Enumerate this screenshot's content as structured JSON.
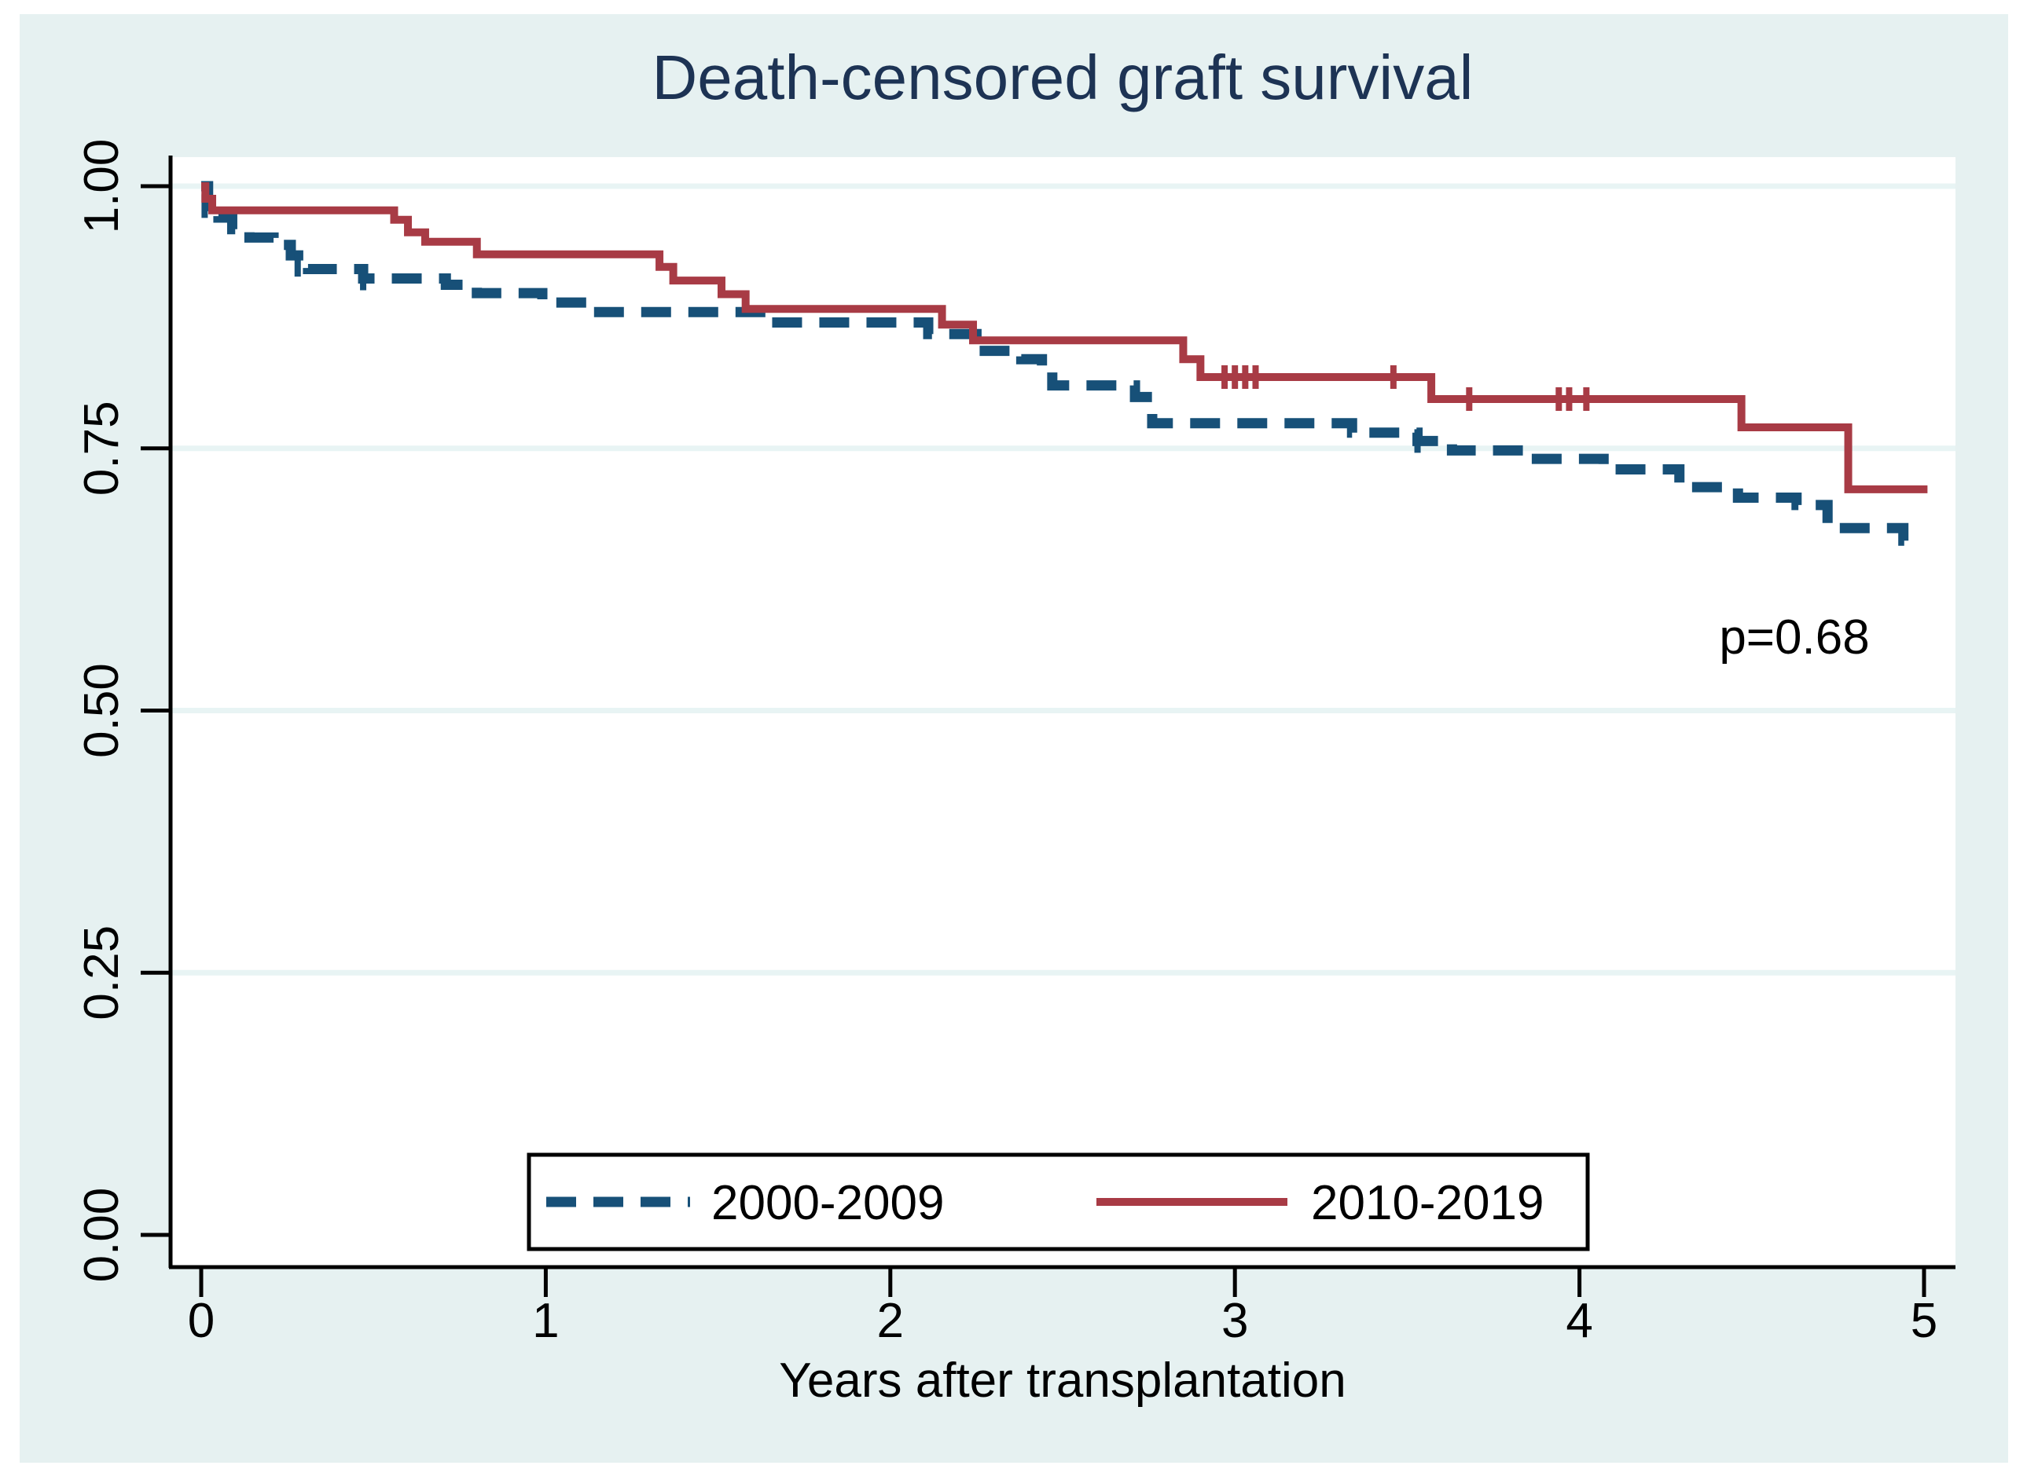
{
  "title": {
    "text": "Death-censored graft survival",
    "color": "#1d3354"
  },
  "annotation": {
    "p_value": "p=0.68"
  },
  "colors": {
    "figure_background": "#e6f1f1",
    "plot_background": "#ffffff",
    "gridline": "#e8f4f4",
    "axis": "#000000",
    "series_2000": "#175078",
    "series_2010": "#a83b45"
  },
  "axes": {
    "x": {
      "label": "Years after transplantation",
      "tick_labels": [
        "0",
        "1",
        "2",
        "3",
        "4",
        "5"
      ],
      "tick_values": [
        0,
        1,
        2,
        3,
        4,
        5
      ]
    },
    "y": {
      "label": "",
      "tick_labels": [
        "0.00",
        "0.25",
        "0.50",
        "0.75",
        "1.00"
      ],
      "tick_values": [
        0,
        0.25,
        0.5,
        0.75,
        1.0
      ]
    }
  },
  "legend": {
    "entries": [
      {
        "label": "2000-2009",
        "style": "dashed",
        "color": "#175078"
      },
      {
        "label": "2010-2019",
        "style": "solid",
        "color": "#a83b45"
      }
    ]
  },
  "chart_data": {
    "type": "line",
    "subtype": "kaplan-meier-step",
    "title": "Death-censored graft survival",
    "xlabel": "Years after transplantation",
    "ylabel": "",
    "xlim": [
      0,
      5
    ],
    "ylim": [
      0,
      1
    ],
    "grid": "horizontal",
    "legend_position": "bottom-center",
    "annotation": {
      "text": "p=0.68",
      "x": 4.62,
      "y": 0.57
    },
    "series": [
      {
        "name": "2000-2009",
        "line": "dashed",
        "color": "#175078",
        "width": 13,
        "dash": "38 22",
        "end_x": 4.97,
        "points": [
          [
            0,
            1.0
          ],
          [
            0.02,
            0.981
          ],
          [
            0.05,
            0.97
          ],
          [
            0.09,
            0.959
          ],
          [
            0.14,
            0.951
          ],
          [
            0.21,
            0.944
          ],
          [
            0.26,
            0.934
          ],
          [
            0.31,
            0.921
          ],
          [
            0.47,
            0.912
          ],
          [
            0.71,
            0.906
          ],
          [
            0.8,
            0.898
          ],
          [
            0.99,
            0.889
          ],
          [
            1.14,
            0.88
          ],
          [
            1.64,
            0.87
          ],
          [
            2.11,
            0.859
          ],
          [
            2.25,
            0.843
          ],
          [
            2.38,
            0.835
          ],
          [
            2.44,
            0.825
          ],
          [
            2.47,
            0.81
          ],
          [
            2.71,
            0.799
          ],
          [
            2.76,
            0.774
          ],
          [
            3.34,
            0.765
          ],
          [
            3.53,
            0.757
          ],
          [
            3.63,
            0.748
          ],
          [
            3.85,
            0.74
          ],
          [
            4.07,
            0.73
          ],
          [
            4.29,
            0.713
          ],
          [
            4.46,
            0.703
          ],
          [
            4.63,
            0.696
          ],
          [
            4.72,
            0.674
          ],
          [
            4.94,
            0.662
          ]
        ],
        "censor_marks": [
          [
            0.01,
            0.981
          ],
          [
            0.28,
            0.925
          ],
          [
            0.47,
            0.912
          ],
          [
            3.53,
            0.757
          ]
        ]
      },
      {
        "name": "2010-2019",
        "line": "solid",
        "color": "#a83b45",
        "width": 10,
        "dash": "",
        "end_x": 5.01,
        "points": [
          [
            0,
            1.0
          ],
          [
            0.012,
            0.988
          ],
          [
            0.032,
            0.977
          ],
          [
            0.56,
            0.968
          ],
          [
            0.6,
            0.956
          ],
          [
            0.65,
            0.947
          ],
          [
            0.8,
            0.935
          ],
          [
            1.33,
            0.923
          ],
          [
            1.37,
            0.91
          ],
          [
            1.51,
            0.897
          ],
          [
            1.58,
            0.883
          ],
          [
            2.15,
            0.868
          ],
          [
            2.24,
            0.853
          ],
          [
            2.85,
            0.835
          ],
          [
            2.9,
            0.818
          ],
          [
            3.57,
            0.797
          ],
          [
            4.47,
            0.77
          ],
          [
            4.78,
            0.711
          ]
        ],
        "censor_marks": [
          [
            2.97,
            0.818
          ],
          [
            3.0,
            0.818
          ],
          [
            3.03,
            0.818
          ],
          [
            3.06,
            0.818
          ],
          [
            3.46,
            0.818
          ],
          [
            3.68,
            0.797
          ],
          [
            3.94,
            0.797
          ],
          [
            3.97,
            0.797
          ],
          [
            4.02,
            0.797
          ]
        ]
      }
    ]
  }
}
